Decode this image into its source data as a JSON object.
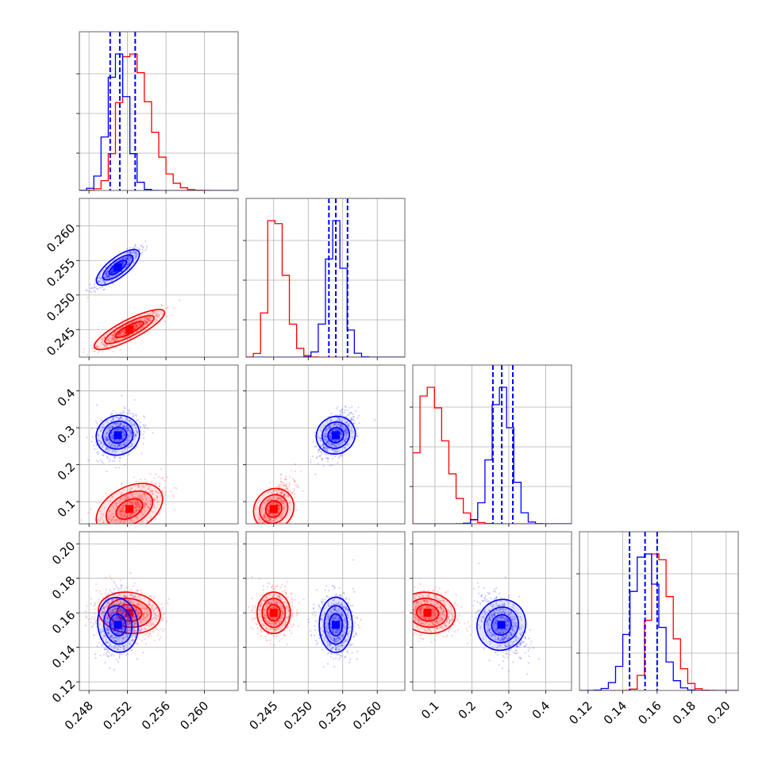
{
  "chart_data": {
    "type": "corner",
    "title": "",
    "parameters": [
      {
        "name": "p1",
        "label": "",
        "range": [
          0.247,
          0.2635
        ],
        "ticks": [
          0.248,
          0.252,
          0.256,
          0.26
        ],
        "tick_labels": [
          "0.248",
          "0.252",
          "0.256",
          "0.260"
        ]
      },
      {
        "name": "p2",
        "label": "",
        "range": [
          0.241,
          0.264
        ],
        "ticks": [
          0.245,
          0.25,
          0.255,
          0.26
        ],
        "tick_labels": [
          "0.245",
          "0.250",
          "0.255",
          "0.260"
        ]
      },
      {
        "name": "p3",
        "label": "",
        "range": [
          0.04,
          0.47
        ],
        "ticks": [
          0.1,
          0.2,
          0.3,
          0.4
        ],
        "tick_labels": [
          "0.1",
          "0.2",
          "0.3",
          "0.4"
        ]
      },
      {
        "name": "p4",
        "label": "",
        "range": [
          0.115,
          0.207
        ],
        "ticks": [
          0.12,
          0.14,
          0.16,
          0.18,
          0.2
        ],
        "tick_labels": [
          "0.12",
          "0.14",
          "0.16",
          "0.18",
          "0.20"
        ]
      }
    ],
    "grid": true,
    "series": [
      {
        "color": "#ff0000",
        "center": [
          0.2522,
          0.245,
          0.08,
          0.16
        ],
        "sigma": [
          0.0015,
          0.0012,
          0.035,
          0.006
        ],
        "quantiles": null
      },
      {
        "color": "#0000ff",
        "center": [
          0.251,
          0.254,
          0.28,
          0.153
        ],
        "sigma": [
          0.001,
          0.0012,
          0.028,
          0.008
        ],
        "quantiles": [
          [
            0.2502,
            0.2512,
            0.2528
          ],
          [
            0.253,
            0.254,
            0.2557
          ],
          [
            0.257,
            0.281,
            0.311
          ],
          [
            0.144,
            0.153,
            0.16
          ]
        ]
      }
    ]
  }
}
